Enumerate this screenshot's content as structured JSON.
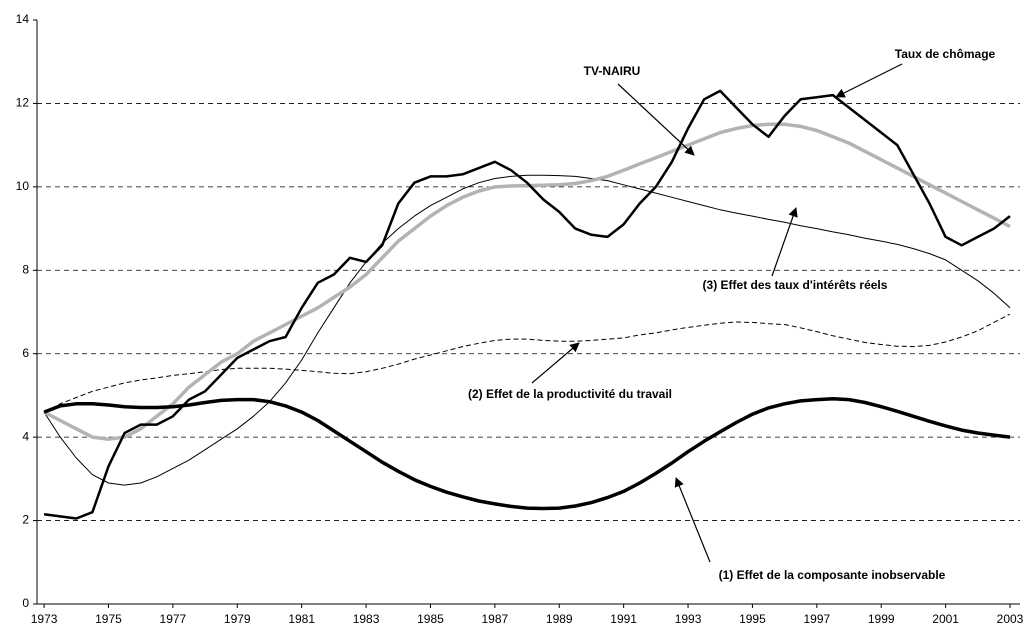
{
  "chart_data": {
    "type": "line",
    "x": [
      1973,
      1973.5,
      1974,
      1974.5,
      1975,
      1975.5,
      1976,
      1976.5,
      1977,
      1977.5,
      1978,
      1978.5,
      1979,
      1979.5,
      1980,
      1980.5,
      1981,
      1981.5,
      1982,
      1982.5,
      1983,
      1983.5,
      1984,
      1984.5,
      1985,
      1985.5,
      1986,
      1986.5,
      1987,
      1987.5,
      1988,
      1988.5,
      1989,
      1989.5,
      1990,
      1990.5,
      1991,
      1991.5,
      1992,
      1992.5,
      1993,
      1993.5,
      1994,
      1994.5,
      1995,
      1995.5,
      1996,
      1996.5,
      1997,
      1997.5,
      1998,
      1998.5,
      1999,
      1999.5,
      2000,
      2000.5,
      2001,
      2001.5,
      2002,
      2002.5,
      2003
    ],
    "series": [
      {
        "name": "Taux de chômage",
        "color": "#000000",
        "values": [
          2.15,
          2.1,
          2.05,
          2.2,
          3.3,
          4.1,
          4.3,
          4.3,
          4.5,
          4.9,
          5.1,
          5.5,
          5.9,
          6.1,
          6.3,
          6.4,
          7.1,
          7.7,
          7.9,
          8.3,
          8.2,
          8.6,
          9.6,
          10.1,
          10.25,
          10.25,
          10.3,
          10.45,
          10.6,
          10.4,
          10.1,
          9.7,
          9.4,
          9.0,
          8.85,
          8.8,
          9.1,
          9.6,
          10.0,
          10.6,
          11.4,
          12.1,
          12.3,
          11.9,
          11.5,
          11.2,
          11.7,
          12.1,
          12.15,
          12.2,
          11.9,
          11.6,
          11.3,
          11.0,
          10.3,
          9.6,
          8.8,
          8.6,
          8.8,
          9.0,
          9.3
        ]
      },
      {
        "name": "TV-NAIRU",
        "color": "#b3b3b3",
        "values": [
          4.6,
          4.4,
          4.2,
          4.0,
          3.95,
          4.0,
          4.2,
          4.5,
          4.8,
          5.2,
          5.5,
          5.8,
          6.0,
          6.3,
          6.5,
          6.7,
          6.9,
          7.1,
          7.35,
          7.6,
          7.9,
          8.3,
          8.7,
          9.0,
          9.3,
          9.55,
          9.75,
          9.9,
          10.0,
          10.02,
          10.03,
          10.04,
          10.05,
          10.08,
          10.15,
          10.25,
          10.4,
          10.55,
          10.7,
          10.85,
          11.0,
          11.15,
          11.3,
          11.4,
          11.47,
          11.5,
          11.5,
          11.45,
          11.35,
          11.2,
          11.05,
          10.85,
          10.65,
          10.45,
          10.25,
          10.05,
          9.85,
          9.65,
          9.45,
          9.25,
          9.05
        ]
      },
      {
        "name": "(3) Effet des taux d'intérêts réels",
        "color": "#000000",
        "values": [
          4.6,
          4.0,
          3.5,
          3.1,
          2.9,
          2.85,
          2.9,
          3.05,
          3.25,
          3.45,
          3.7,
          3.95,
          4.2,
          4.5,
          4.85,
          5.3,
          5.85,
          6.5,
          7.1,
          7.7,
          8.2,
          8.65,
          9.0,
          9.3,
          9.55,
          9.75,
          9.95,
          10.1,
          10.2,
          10.25,
          10.28,
          10.28,
          10.27,
          10.25,
          10.2,
          10.15,
          10.05,
          9.95,
          9.85,
          9.75,
          9.65,
          9.55,
          9.45,
          9.37,
          9.3,
          9.22,
          9.15,
          9.07,
          9.0,
          8.92,
          8.85,
          8.77,
          8.7,
          8.62,
          8.52,
          8.4,
          8.25,
          8.0,
          7.75,
          7.45,
          7.1
        ]
      },
      {
        "name": "(2) Effet de la productivité du travail",
        "color": "#000000",
        "dashed": true,
        "values": [
          4.6,
          4.8,
          4.95,
          5.1,
          5.2,
          5.3,
          5.37,
          5.42,
          5.48,
          5.52,
          5.57,
          5.62,
          5.65,
          5.65,
          5.65,
          5.63,
          5.6,
          5.57,
          5.53,
          5.52,
          5.57,
          5.65,
          5.75,
          5.87,
          5.97,
          6.07,
          6.17,
          6.25,
          6.32,
          6.35,
          6.35,
          6.32,
          6.3,
          6.3,
          6.32,
          6.35,
          6.38,
          6.45,
          6.5,
          6.57,
          6.63,
          6.68,
          6.73,
          6.76,
          6.75,
          6.72,
          6.7,
          6.62,
          6.53,
          6.43,
          6.35,
          6.27,
          6.22,
          6.18,
          6.17,
          6.2,
          6.28,
          6.4,
          6.55,
          6.75,
          6.95
        ]
      },
      {
        "name": "(1) Effet de la composante inobservable",
        "color": "#000000",
        "values": [
          4.6,
          4.75,
          4.8,
          4.8,
          4.77,
          4.73,
          4.71,
          4.71,
          4.73,
          4.77,
          4.83,
          4.88,
          4.9,
          4.9,
          4.85,
          4.75,
          4.6,
          4.4,
          4.15,
          3.9,
          3.65,
          3.4,
          3.18,
          2.98,
          2.82,
          2.68,
          2.57,
          2.47,
          2.4,
          2.34,
          2.3,
          2.29,
          2.3,
          2.35,
          2.43,
          2.55,
          2.7,
          2.9,
          3.13,
          3.38,
          3.65,
          3.9,
          4.13,
          4.35,
          4.55,
          4.7,
          4.8,
          4.87,
          4.9,
          4.92,
          4.9,
          4.83,
          4.73,
          4.62,
          4.5,
          4.38,
          4.27,
          4.17,
          4.1,
          4.05,
          4.0
        ]
      }
    ],
    "xlim": [
      1972.78,
      2003.31
    ],
    "xticks": [
      1973,
      1975,
      1977,
      1979,
      1981,
      1983,
      1985,
      1987,
      1989,
      1991,
      1993,
      1995,
      1997,
      1999,
      2001,
      2003
    ],
    "ylim": [
      0,
      14
    ],
    "yticks": [
      0,
      2,
      4,
      6,
      8,
      10,
      12,
      14
    ],
    "grid": true
  }
}
